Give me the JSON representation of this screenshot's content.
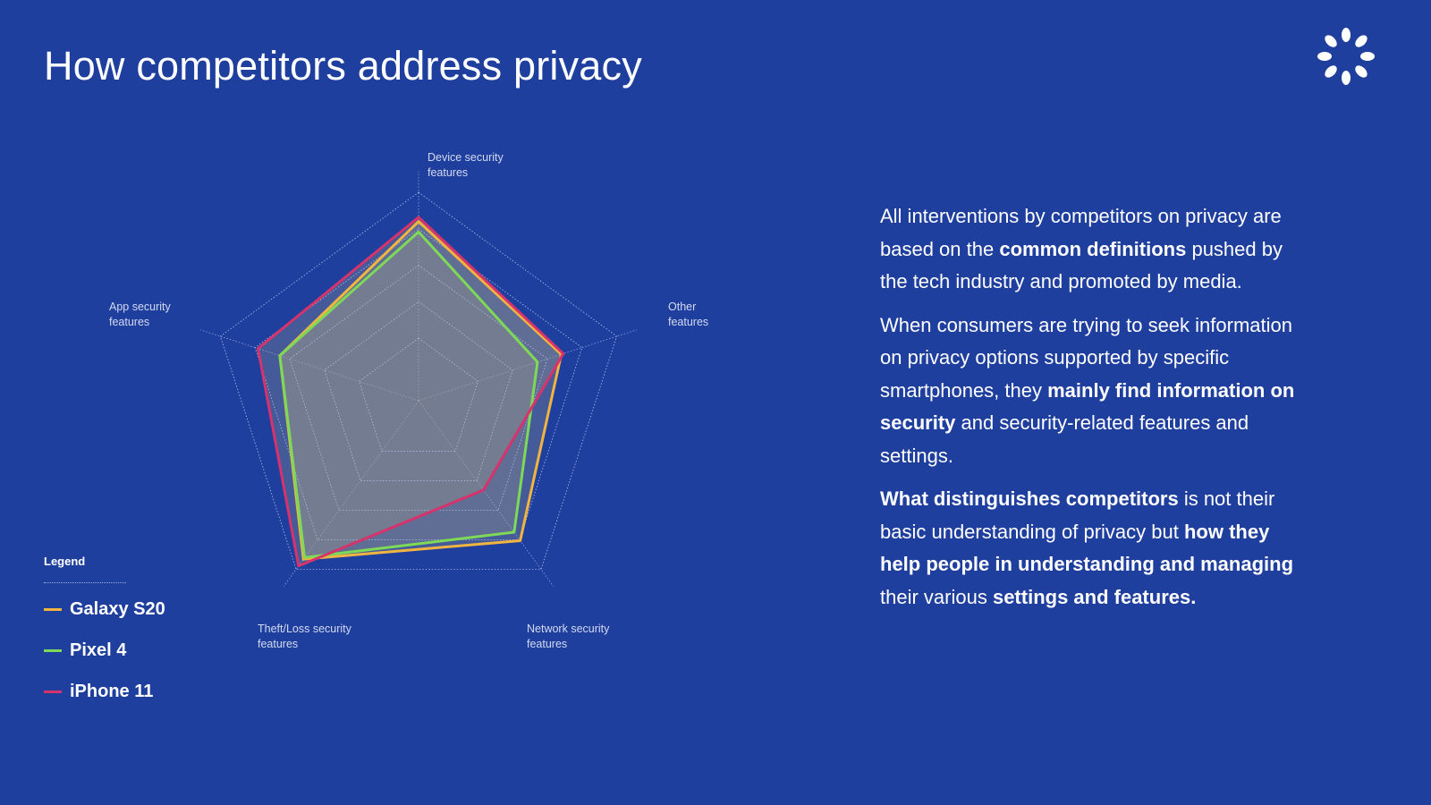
{
  "chart_data": {
    "type": "radar",
    "title": "How competitors address privacy",
    "categories": [
      "Device security features",
      "Other features",
      "Network security features",
      "Theft/Loss security features",
      "App security features"
    ],
    "rlim": [
      0,
      100
    ],
    "rticks": [
      30,
      47.5,
      65,
      82.5,
      100
    ],
    "grid": true,
    "legend_title": "Legend",
    "legend_position": "bottom-left",
    "series": [
      {
        "name": "Galaxy S20",
        "color": "#f2b440",
        "values": [
          86,
          72,
          83,
          94,
          70
        ]
      },
      {
        "name": "Pixel 4",
        "color": "#7ed957",
        "values": [
          81,
          60,
          78,
          93,
          70
        ]
      },
      {
        "name": "iPhone 11",
        "color": "#d6336c",
        "values": [
          88,
          73,
          53,
          98,
          81
        ]
      }
    ]
  },
  "paragraphs": [
    [
      {
        "text": "All interventions by competitors on privacy are based on the ",
        "bold": false
      },
      {
        "text": "common definitions",
        "bold": true
      },
      {
        "text": " pushed by the tech industry and promoted by media.",
        "bold": false
      }
    ],
    [
      {
        "text": "When consumers are trying to seek information on privacy options supported by specific smartphones, they ",
        "bold": false
      },
      {
        "text": "mainly find information on security",
        "bold": true
      },
      {
        "text": " and security-related features and settings.",
        "bold": false
      }
    ],
    [
      {
        "text": "What distinguishes competitors",
        "bold": true
      },
      {
        "text": " is not their basic understanding of privacy but ",
        "bold": false
      },
      {
        "text": "how they help people in understanding and managing",
        "bold": true
      },
      {
        "text": " their various ",
        "bold": false
      },
      {
        "text": "settings and features.",
        "bold": true
      }
    ]
  ]
}
